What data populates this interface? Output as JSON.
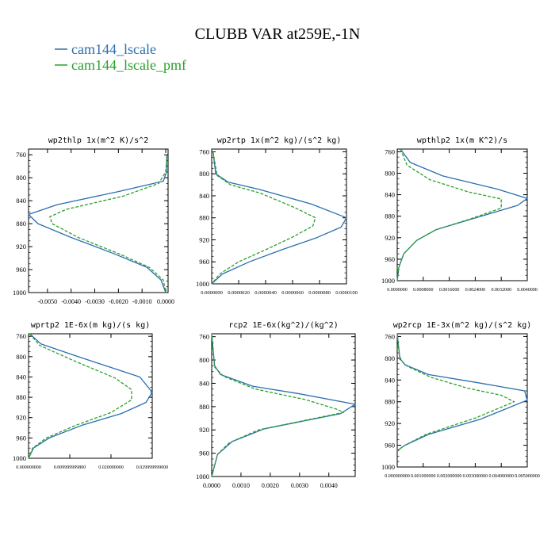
{
  "title": "CLUBB VAR at259E,-1N",
  "legend": [
    {
      "name": "cam144_lscale",
      "color": "#2a6fb0"
    },
    {
      "name": "cam144_lscale_pmf",
      "color": "#2aa02a"
    }
  ],
  "chart_data": [
    {
      "type": "line",
      "title": "wp2thlp  1x(m^2 K)/s^2",
      "xlim": [
        -0.0058,
        0.0001
      ],
      "ylim": [
        1000,
        750
      ],
      "xticks": [
        "-0.0050",
        "-0.0040",
        "-0.0030",
        "-0.0020",
        "-0.0010",
        "0.0000"
      ],
      "xtick_values": [
        -0.005,
        -0.004,
        -0.003,
        -0.002,
        -0.001,
        0.0
      ],
      "yticks": [
        "760",
        "800",
        "840",
        "880",
        "920",
        "960",
        "1000"
      ],
      "ytick_values": [
        760,
        800,
        840,
        880,
        920,
        960,
        1000
      ],
      "grid": false,
      "series": [
        {
          "name": "cam144_lscale",
          "color": "#2a6fb0",
          "dashed": false,
          "x": [
            5e-05,
            3e-05,
            -0.0001,
            -0.002,
            -0.0046,
            -0.0058,
            -0.0054,
            -0.004,
            -0.0022,
            -0.0008,
            -0.0002,
            0.0
          ],
          "y": [
            760,
            790,
            806,
            824,
            847,
            864,
            880,
            904,
            932,
            956,
            978,
            1000
          ]
        },
        {
          "name": "cam144_lscale_pmf",
          "color": "#2aa02a",
          "dashed": true,
          "x": [
            5e-05,
            0.0,
            -0.0003,
            -0.0018,
            -0.0042,
            -0.0049,
            -0.0048,
            -0.0037,
            -0.002,
            -0.0007,
            -0.0001,
            0.0
          ],
          "y": [
            760,
            790,
            810,
            832,
            855,
            868,
            880,
            904,
            932,
            956,
            978,
            1000
          ]
        }
      ]
    },
    {
      "type": "line",
      "title": "wp2rtp  1x(m^2 kg)/(s^2 kg)",
      "xlim": [
        0.0,
        1e-05
      ],
      "ylim": [
        1000,
        755
      ],
      "xticks": [
        "0.0000000",
        "0.0000020",
        "0.0000040",
        "0.0000060",
        "0.0000080",
        "0.0000100"
      ],
      "xtick_values": [
        0.0,
        2e-06,
        4e-06,
        6e-06,
        8e-06,
        1e-05
      ],
      "yticks": [
        "760",
        "800",
        "840",
        "880",
        "920",
        "960",
        "1000"
      ],
      "ytick_values": [
        760,
        800,
        840,
        880,
        920,
        960,
        1000
      ],
      "grid": false,
      "series": [
        {
          "name": "cam144_lscale",
          "color": "#2a6fb0",
          "dashed": false,
          "x": [
            1e-07,
            3e-07,
            1.2e-06,
            3.5e-06,
            7.4e-06,
            1e-05,
            9.6e-06,
            7.8e-06,
            5.2e-06,
            2.8e-06,
            8e-07,
            0.0
          ],
          "y": [
            760,
            800,
            815,
            828,
            855,
            880,
            897,
            916,
            938,
            960,
            982,
            1000
          ]
        },
        {
          "name": "cam144_lscale_pmf",
          "color": "#2aa02a",
          "dashed": true,
          "x": [
            1e-07,
            4e-07,
            1.4e-06,
            3.6e-06,
            6.2e-06,
            7.7e-06,
            7.5e-06,
            6e-06,
            4e-06,
            2e-06,
            6e-07,
            0.0
          ],
          "y": [
            760,
            803,
            820,
            835,
            862,
            880,
            895,
            915,
            938,
            960,
            982,
            1000
          ]
        }
      ]
    },
    {
      "type": "line",
      "title": "wpthlp2  1x(m K^2)/s",
      "xlim": [
        0.0,
        0.004
      ],
      "ylim": [
        1000,
        755
      ],
      "xticks": [
        "0.0000000",
        "0.0008000",
        "0.0016000",
        "0.0024000",
        "0.0032000",
        "0.0040000"
      ],
      "xtick_values": [
        0.0,
        0.0008,
        0.0016,
        0.0024,
        0.0032,
        0.004
      ],
      "yticks": [
        "760",
        "800",
        "840",
        "880",
        "920",
        "960",
        "1000"
      ],
      "ytick_values": [
        760,
        800,
        840,
        880,
        920,
        960,
        1000
      ],
      "grid": false,
      "series": [
        {
          "name": "cam144_lscale",
          "color": "#2a6fb0",
          "dashed": false,
          "x": [
            0.0001,
            0.0004,
            0.0014,
            0.0031,
            0.004,
            0.0037,
            0.0023,
            0.0012,
            0.0006,
            0.0002,
            5e-05,
            0.0
          ],
          "y": [
            755,
            780,
            805,
            830,
            847,
            860,
            885,
            905,
            925,
            950,
            975,
            1000
          ]
        },
        {
          "name": "cam144_lscale_pmf",
          "color": "#2aa02a",
          "dashed": true,
          "x": [
            0.0001,
            0.0003,
            0.001,
            0.0022,
            0.0032,
            0.0032,
            0.0022,
            0.0012,
            0.0006,
            0.0002,
            5e-05,
            0.0
          ],
          "y": [
            755,
            785,
            812,
            835,
            848,
            865,
            886,
            905,
            925,
            950,
            975,
            1000
          ]
        }
      ]
    },
    {
      "type": "line",
      "title": "wprtp2  1E-6x(m kg)/(s kg)",
      "xlim": [
        0.0,
        0.03
      ],
      "ylim": [
        1000,
        755
      ],
      "xticks": [
        "0.000000000",
        "0.009999999800",
        "0.020000000",
        "0.029999999000"
      ],
      "xtick_values": [
        0.0,
        0.01,
        0.02,
        0.03
      ],
      "yticks": [
        "760",
        "800",
        "840",
        "880",
        "920",
        "960",
        "1000"
      ],
      "ytick_values": [
        760,
        800,
        840,
        880,
        920,
        960,
        1000
      ],
      "grid": false,
      "series": [
        {
          "name": "cam144_lscale",
          "color": "#2a6fb0",
          "dashed": false,
          "x": [
            0.0003,
            0.003,
            0.012,
            0.027,
            0.03,
            0.0285,
            0.0225,
            0.013,
            0.005,
            0.0012,
            0.0
          ],
          "y": [
            755,
            775,
            800,
            840,
            870,
            890,
            912,
            935,
            960,
            980,
            1000
          ]
        },
        {
          "name": "cam144_lscale_pmf",
          "color": "#2aa02a",
          "dashed": true,
          "x": [
            0.0003,
            0.0027,
            0.011,
            0.021,
            0.025,
            0.025,
            0.02,
            0.0115,
            0.0043,
            0.001,
            0.0
          ],
          "y": [
            755,
            778,
            808,
            842,
            865,
            885,
            910,
            935,
            960,
            980,
            1000
          ]
        }
      ]
    },
    {
      "type": "line",
      "title": "rcp2  1E-6x(kg^2)/(kg^2)",
      "xlim": [
        0.0,
        0.0049
      ],
      "ylim": [
        1000,
        755
      ],
      "xticks": [
        "0.0000",
        "0.0010",
        "0.0020",
        "0.0030",
        "0.0040"
      ],
      "xtick_values": [
        0.0,
        0.001,
        0.002,
        0.003,
        0.004
      ],
      "yticks": [
        "760",
        "800",
        "840",
        "880",
        "920",
        "960",
        "1000"
      ],
      "ytick_values": [
        760,
        800,
        840,
        880,
        920,
        960,
        1000
      ],
      "grid": false,
      "series": [
        {
          "name": "cam144_lscale",
          "color": "#2a6fb0",
          "dashed": false,
          "x": [
            0.0,
            0.0001,
            0.0003,
            0.0014,
            0.003,
            0.0049,
            0.0044,
            0.0018,
            0.0007,
            0.0002,
            0.0
          ],
          "y": [
            755,
            810,
            825,
            845,
            858,
            876,
            892,
            918,
            940,
            962,
            1000
          ]
        },
        {
          "name": "cam144_lscale_pmf",
          "color": "#2aa02a",
          "dashed": true,
          "x": [
            0.0,
            0.0001,
            0.0004,
            0.0015,
            0.0032,
            0.0043,
            0.0045,
            0.0016,
            0.0006,
            0.0002,
            0.0
          ],
          "y": [
            755,
            812,
            828,
            850,
            868,
            885,
            890,
            920,
            942,
            962,
            1000
          ]
        }
      ]
    },
    {
      "type": "line",
      "title": "wp2rcp  1E-3x(m^2 kg)/(s^2 kg)",
      "xlim": [
        0.0,
        0.005
      ],
      "ylim": [
        1000,
        755
      ],
      "xticks": [
        "0.000000000",
        "0.001000000",
        "0.002000000",
        "0.003000000",
        "0.004000000",
        "0.005000000"
      ],
      "xtick_values": [
        0.0,
        0.001,
        0.002,
        0.003,
        0.004,
        0.005
      ],
      "yticks": [
        "760",
        "800",
        "840",
        "880",
        "920",
        "960",
        "1000"
      ],
      "ytick_values": [
        760,
        800,
        840,
        880,
        920,
        960,
        1000
      ],
      "grid": false,
      "series": [
        {
          "name": "cam144_lscale",
          "color": "#2a6fb0",
          "dashed": false,
          "x": [
            0.0,
            0.0001,
            0.0003,
            0.0012,
            0.0031,
            0.0049,
            0.005,
            0.0032,
            0.0012,
            0.0003,
            0.0
          ],
          "y": [
            755,
            800,
            812,
            830,
            845,
            860,
            877,
            912,
            940,
            960,
            970
          ]
        },
        {
          "name": "cam144_lscale_pmf",
          "color": "#2aa02a",
          "dashed": true,
          "x": [
            0.0,
            0.0001,
            0.0004,
            0.0013,
            0.0027,
            0.004,
            0.0045,
            0.003,
            0.0011,
            0.0003,
            0.0
          ],
          "y": [
            755,
            802,
            815,
            835,
            855,
            868,
            880,
            910,
            940,
            960,
            970
          ]
        }
      ]
    }
  ]
}
